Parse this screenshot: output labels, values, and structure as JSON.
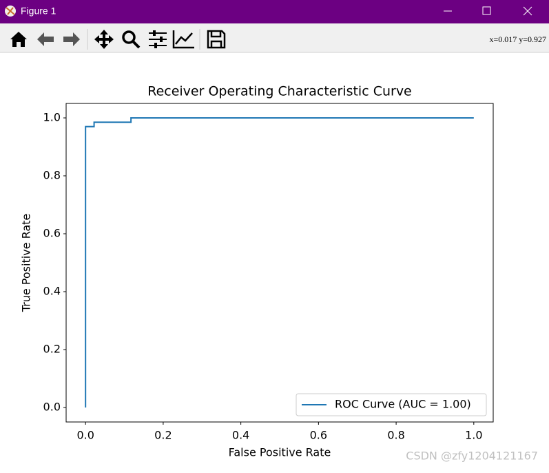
{
  "window": {
    "title": "Figure 1",
    "coords": "x=0.017  y=0.927",
    "watermark": "CSDN @zfy1204121167"
  },
  "chart_data": {
    "type": "line",
    "title": "Receiver Operating Characteristic Curve",
    "x_label": "False Positive Rate",
    "y_label": "True Positive Rate",
    "series": [
      {
        "name": "ROC Curve (AUC = 1.00)",
        "color": "#1f77b4",
        "x": [
          0,
          0,
          0.022,
          0.022,
          0.117,
          0.117,
          1.0
        ],
        "values": [
          0,
          0.97,
          0.97,
          0.985,
          0.985,
          1.0,
          1.0
        ]
      }
    ],
    "xlim": [
      -0.05,
      1.05
    ],
    "ylim": [
      -0.05,
      1.05
    ],
    "xticks": [
      {
        "value": 0,
        "label": "0.0"
      },
      0.2,
      0.4,
      0.6,
      0.8,
      {
        "value": 1,
        "label": "1.0"
      }
    ],
    "yticks": [
      {
        "value": 0,
        "label": "0.0"
      },
      0.2,
      0.4,
      0.6,
      0.8,
      {
        "value": 1,
        "label": "1.0"
      }
    ],
    "grid": false,
    "legend": "lower right"
  }
}
